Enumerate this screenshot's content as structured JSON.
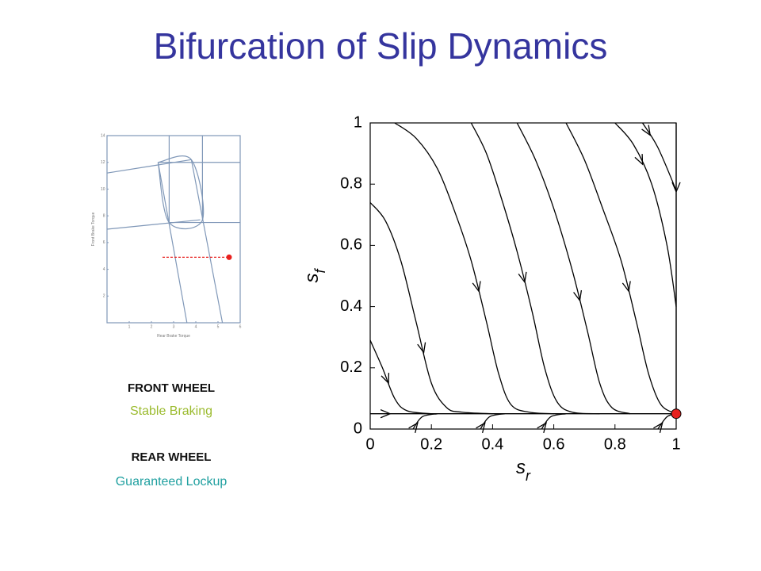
{
  "title": "Bifurcation of Slip Dynamics",
  "panel": {
    "front_heading": "FRONT WHEEL",
    "front_status": "Stable Braking",
    "rear_heading": "REAR WHEEL",
    "rear_status": "Guaranteed Lockup"
  },
  "chart_data": [
    {
      "type": "line",
      "xlabel": "s",
      "xlabel_sub": "r",
      "ylabel": "s",
      "ylabel_sub": "f",
      "xlim": [
        0,
        1
      ],
      "ylim": [
        0,
        1
      ],
      "xticks": [
        0,
        0.2,
        0.4,
        0.6,
        0.8,
        1
      ],
      "yticks": [
        0,
        0.2,
        0.4,
        0.6,
        0.8,
        1
      ],
      "grid": false,
      "arrows": true,
      "series": [
        {
          "color": "#000000",
          "x": [
            0,
            0.05,
            0.1,
            0.15,
            0.2,
            0.25,
            0.3,
            0.4
          ],
          "y": [
            0.74,
            0.68,
            0.55,
            0.35,
            0.15,
            0.07,
            0.055,
            0.05
          ]
        },
        {
          "color": "#000000",
          "x": [
            0,
            0.04,
            0.08,
            0.12,
            0.2
          ],
          "y": [
            0.29,
            0.2,
            0.1,
            0.06,
            0.05
          ]
        },
        {
          "color": "#000000",
          "x": [
            0.08,
            0.15,
            0.22,
            0.28,
            0.33,
            0.38,
            0.42,
            0.46,
            0.52,
            0.6
          ],
          "y": [
            1,
            0.95,
            0.85,
            0.7,
            0.55,
            0.35,
            0.18,
            0.08,
            0.055,
            0.05
          ]
        },
        {
          "color": "#000000",
          "x": [
            0.33,
            0.38,
            0.43,
            0.48,
            0.53,
            0.57,
            0.61,
            0.66,
            0.75
          ],
          "y": [
            1,
            0.9,
            0.75,
            0.58,
            0.38,
            0.2,
            0.09,
            0.055,
            0.05
          ]
        },
        {
          "color": "#000000",
          "x": [
            0.48,
            0.54,
            0.6,
            0.66,
            0.71,
            0.75,
            0.79,
            0.85
          ],
          "y": [
            1,
            0.88,
            0.72,
            0.52,
            0.32,
            0.15,
            0.07,
            0.05
          ]
        },
        {
          "color": "#000000",
          "x": [
            0.64,
            0.7,
            0.76,
            0.82,
            0.87,
            0.91,
            0.95,
            1
          ],
          "y": [
            1,
            0.88,
            0.72,
            0.55,
            0.35,
            0.18,
            0.08,
            0.05
          ]
        },
        {
          "color": "#000000",
          "x": [
            0.8,
            0.86,
            0.92,
            0.97,
            1
          ],
          "y": [
            1,
            0.93,
            0.8,
            0.6,
            0.4
          ]
        },
        {
          "color": "#000000",
          "x": [
            0.89,
            0.94,
            1
          ],
          "y": [
            1,
            0.92,
            0.78
          ]
        },
        {
          "color": "#000000",
          "x": [
            1,
            1,
            1
          ],
          "y": [
            1,
            0.55,
            0.05
          ]
        },
        {
          "color": "#000000",
          "x": [
            0,
            0.13,
            1
          ],
          "y": [
            0.05,
            0.05,
            0.05
          ]
        },
        {
          "color": "#000000",
          "x": [
            0.14,
            0.17,
            0.22
          ],
          "y": [
            0,
            0.04,
            0.05
          ]
        },
        {
          "color": "#000000",
          "x": [
            0.36,
            0.39,
            0.44
          ],
          "y": [
            0,
            0.04,
            0.05
          ]
        },
        {
          "color": "#000000",
          "x": [
            0.56,
            0.59,
            0.64
          ],
          "y": [
            0,
            0.04,
            0.05
          ]
        },
        {
          "color": "#000000",
          "x": [
            0.94,
            0.97,
            1
          ],
          "y": [
            0,
            0.04,
            0.05
          ]
        }
      ],
      "equilibrium": {
        "x": 1,
        "y": 0.05,
        "color": "#e8201e"
      }
    },
    {
      "type": "line",
      "xlabel": "Rear Brake Torque",
      "ylabel": "Front Brake Torque",
      "xlim": [
        0,
        6
      ],
      "ylim": [
        0,
        14
      ],
      "xticks": [
        1,
        2,
        3,
        4,
        5,
        6
      ],
      "yticks": [
        2,
        4,
        6,
        8,
        10,
        12,
        14
      ],
      "grid": false,
      "arrows": false,
      "series": [
        {
          "color": "#8098b8",
          "x": [
            0,
            3.8
          ],
          "y": [
            11.2,
            12.2
          ]
        },
        {
          "color": "#8098b8",
          "x": [
            0,
            4.2
          ],
          "y": [
            7.0,
            7.7
          ]
        },
        {
          "color": "#8098b8",
          "x": [
            2.3,
            3.8,
            4.3,
            2.8,
            2.3
          ],
          "y": [
            12.0,
            12.2,
            7.7,
            7.5,
            12.0
          ]
        },
        {
          "color": "#8098b8",
          "x": [
            2.3,
            3.6
          ],
          "y": [
            12.0,
            0
          ]
        },
        {
          "color": "#8098b8",
          "x": [
            3.8,
            5.2
          ],
          "y": [
            12.2,
            0
          ]
        },
        {
          "color": "#8098b8",
          "x": [
            2.3,
            6
          ],
          "y": [
            12.0,
            12.0
          ]
        },
        {
          "color": "#8098b8",
          "x": [
            2.8,
            6
          ],
          "y": [
            7.5,
            7.5
          ]
        },
        {
          "color": "#8098b8",
          "x": [
            2.8,
            2.8
          ],
          "y": [
            14,
            7.5
          ]
        },
        {
          "color": "#8098b8",
          "x": [
            4.3,
            4.3
          ],
          "y": [
            14,
            7.7
          ]
        },
        {
          "color": "#e8201e",
          "dash": true,
          "x": [
            2.5,
            5.5
          ],
          "y": [
            4.9,
            4.9
          ]
        }
      ],
      "equilibrium": {
        "x": 5.5,
        "y": 4.9,
        "color": "#e8201e"
      }
    }
  ]
}
